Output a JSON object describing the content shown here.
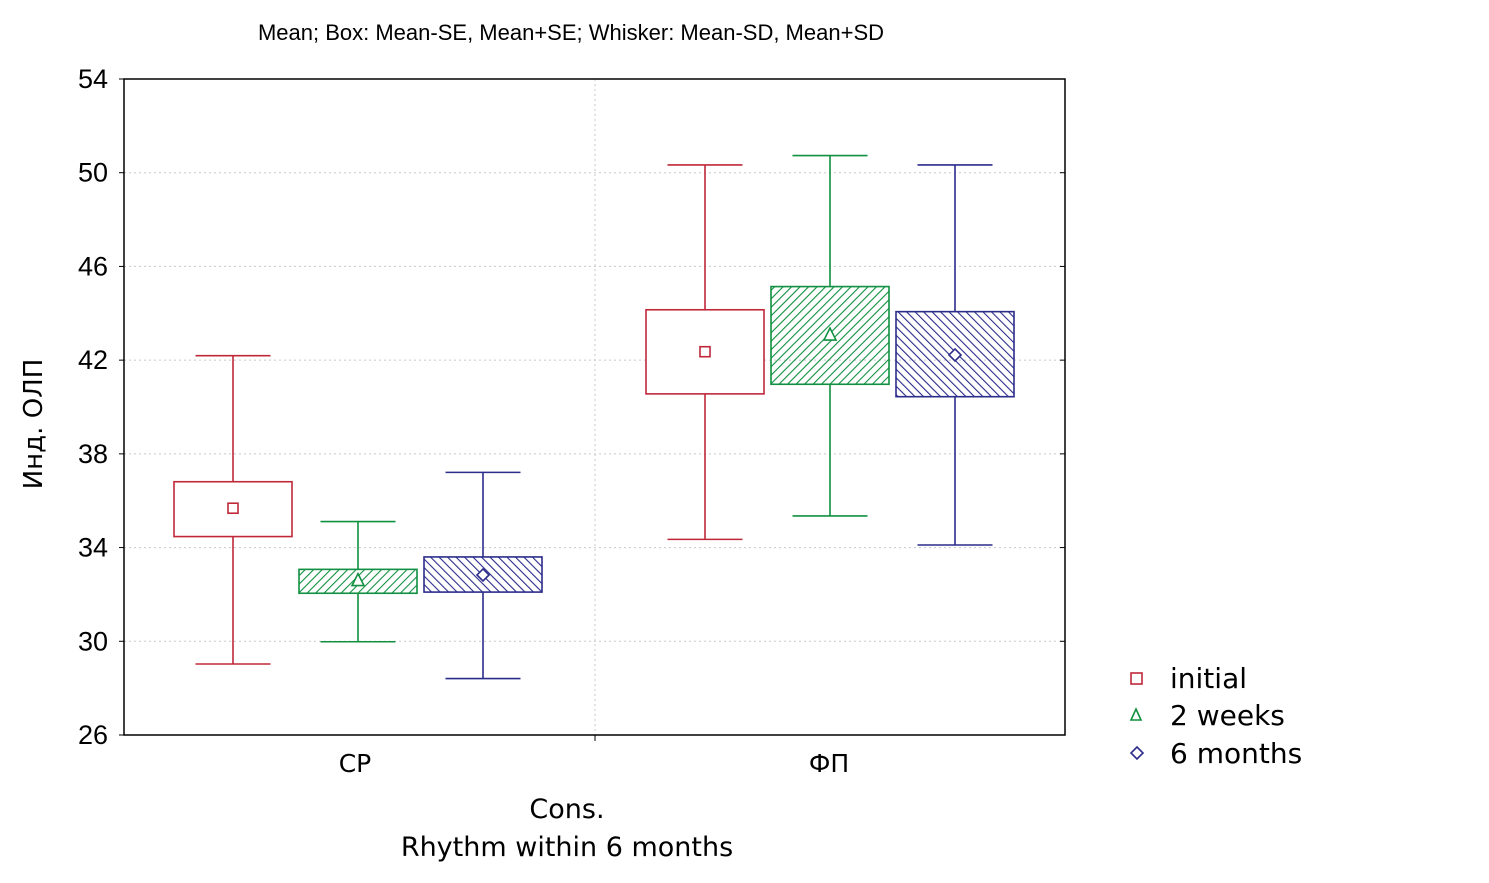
{
  "chart_data": {
    "type": "box",
    "title": "Mean; Box: Mean-SE, Mean+SE; Whisker: Mean-SD, Mean+SD",
    "ylabel": "Инд. ОЛП",
    "xlabel_lines": [
      "Cons.",
      "Rhythm within 6 months"
    ],
    "ylim": [
      26,
      54
    ],
    "yticks": [
      26,
      30,
      34,
      38,
      42,
      46,
      50,
      54
    ],
    "grid": true,
    "legend_position": "bottom-right",
    "categories": [
      "СР",
      "ФП"
    ],
    "series": [
      {
        "name": "initial",
        "color": "#c0283a",
        "marker": "square",
        "fill": "none",
        "values": [
          {
            "mean": 35.68,
            "se_low": 34.47,
            "se_high": 36.81,
            "sd_low": 29.03,
            "sd_high": 42.19
          },
          {
            "mean": 42.36,
            "se_low": 40.56,
            "se_high": 44.15,
            "sd_low": 34.35,
            "sd_high": 50.33
          }
        ]
      },
      {
        "name": "2 weeks",
        "color": "#109040",
        "marker": "triangle",
        "fill": "hatch-forward",
        "values": [
          {
            "mean": 32.59,
            "se_low": 32.05,
            "se_high": 33.07,
            "sd_low": 29.98,
            "sd_high": 35.11
          },
          {
            "mean": 43.07,
            "se_low": 40.97,
            "se_high": 45.14,
            "sd_low": 35.35,
            "sd_high": 50.73
          }
        ]
      },
      {
        "name": "6 months",
        "color": "#2c2c8c",
        "marker": "diamond",
        "fill": "hatch-backward",
        "values": [
          {
            "mean": 32.83,
            "se_low": 32.1,
            "se_high": 33.6,
            "sd_low": 28.41,
            "sd_high": 37.21
          },
          {
            "mean": 42.22,
            "se_low": 40.44,
            "se_high": 44.07,
            "sd_low": 34.11,
            "sd_high": 50.33
          }
        ]
      }
    ]
  }
}
